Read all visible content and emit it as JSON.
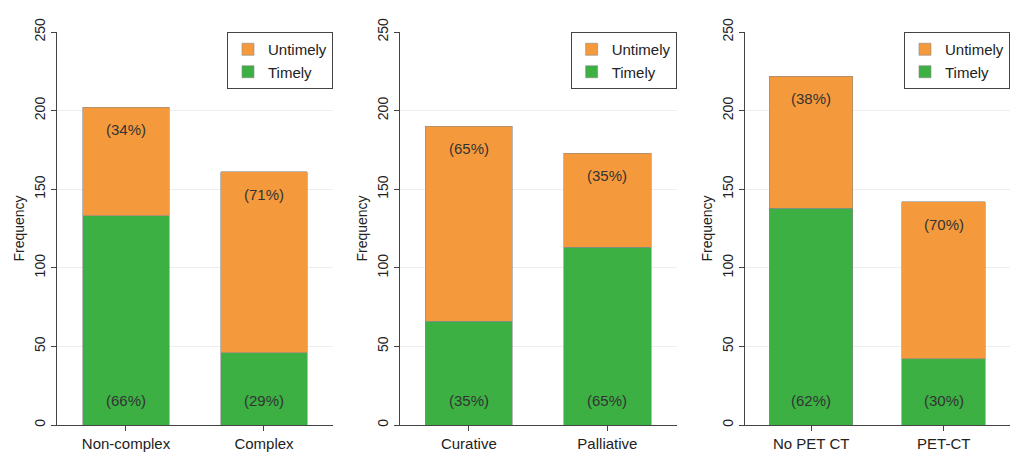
{
  "chart_data": [
    {
      "type": "bar",
      "stacked": true,
      "ylabel": "Frequency",
      "categories": [
        "Non-complex",
        "Complex"
      ],
      "series": [
        {
          "name": "Timely",
          "color": "#3cb043",
          "values": [
            133,
            46
          ],
          "annotations": [
            "(66%)",
            "(29%)"
          ]
        },
        {
          "name": "Untimely",
          "color": "#f59a3c",
          "values": [
            69,
            115
          ],
          "annotations": [
            "(34%)",
            "(71%)"
          ]
        }
      ],
      "ylim": [
        0,
        250
      ],
      "yticks": [
        0,
        50,
        100,
        150,
        200,
        250
      ],
      "grid": true,
      "legend": "top-right"
    },
    {
      "type": "bar",
      "stacked": true,
      "ylabel": "Frequency",
      "categories": [
        "Curative",
        "Palliative"
      ],
      "series": [
        {
          "name": "Timely",
          "color": "#3cb043",
          "values": [
            66,
            113
          ],
          "annotations": [
            "(35%)",
            "(65%)"
          ]
        },
        {
          "name": "Untimely",
          "color": "#f59a3c",
          "values": [
            124,
            60
          ],
          "annotations": [
            "(65%)",
            "(35%)"
          ]
        }
      ],
      "ylim": [
        0,
        250
      ],
      "yticks": [
        0,
        50,
        100,
        150,
        200,
        250
      ],
      "grid": true,
      "legend": "top-right"
    },
    {
      "type": "bar",
      "stacked": true,
      "ylabel": "Frequency",
      "categories": [
        "No PET CT",
        "PET-CT"
      ],
      "series": [
        {
          "name": "Timely",
          "color": "#3cb043",
          "values": [
            138,
            42
          ],
          "annotations": [
            "(62%)",
            "(30%)"
          ]
        },
        {
          "name": "Untimely",
          "color": "#f59a3c",
          "values": [
            84,
            100
          ],
          "annotations": [
            "(38%)",
            "(70%)"
          ]
        }
      ],
      "ylim": [
        0,
        250
      ],
      "yticks": [
        0,
        50,
        100,
        150,
        200,
        250
      ],
      "grid": true,
      "legend": "top-right"
    }
  ]
}
